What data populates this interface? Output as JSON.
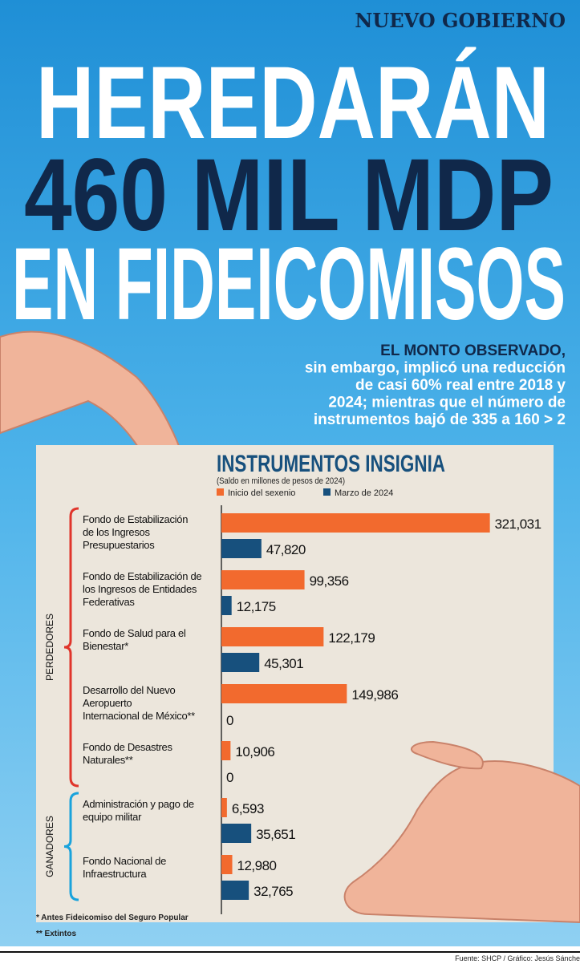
{
  "header": {
    "kicker": "NUEVO GOBIERNO",
    "title": [
      "HEREDARÁN",
      "460 MIL MDP",
      "EN FIDEICOMISOS"
    ],
    "subtitle": [
      "EL MONTO OBSERVADO,",
      "sin embargo, implicó una reducción",
      "de casi 60% real entre 2018 y",
      "2024; mientras que el número de",
      "instrumentos bajó de 335 a 160 > 2"
    ]
  },
  "chart_data": {
    "type": "bar",
    "orientation": "horizontal",
    "title": "INSTRUMENTOS INSIGNIA",
    "subtitle": "(Saldo en millones de pesos de 2024)",
    "groups": [
      {
        "name": "PERDEDORES",
        "color": "#e0352b",
        "categories": [
          [
            "Fondo de Estabilización",
            "de los Ingresos",
            "Presupuestarios"
          ],
          [
            "Fondo de Estabilización de",
            "los Ingresos de Entidades",
            "Federativas"
          ],
          [
            "Fondo de Salud  para el",
            "Bienestar*"
          ],
          [
            "Desarrollo del Nuevo",
            "Aeropuerto",
            "Internacional de México**"
          ],
          [
            "Fondo de Desastres",
            "Naturales**"
          ]
        ]
      },
      {
        "name": "GANADORES",
        "color": "#1aa3dc",
        "categories": [
          [
            "Administración y pago de",
            "equipo militar"
          ],
          [
            "Fondo Nacional de",
            "Infraestructura"
          ]
        ]
      }
    ],
    "series": [
      {
        "name": "Inicio del sexenio",
        "color": "#f26a2e",
        "values": [
          321031,
          99356,
          122179,
          149986,
          10906,
          6593,
          12980
        ],
        "value_labels": [
          "321,031",
          "99,356",
          "122,179",
          "149,986",
          "10,906",
          "6,593",
          "12,980"
        ]
      },
      {
        "name": "Marzo de 2024",
        "color": "#17507d",
        "values": [
          47820,
          12175,
          45301,
          0,
          0,
          35651,
          32765
        ],
        "value_labels": [
          "47,820",
          "12,175",
          "45,301",
          "0",
          "0",
          "35,651",
          "32,765"
        ]
      }
    ],
    "xlim": [
      0,
      330000
    ]
  },
  "footer": {
    "notes": [
      "* Antes Fideicomiso del Seguro Popular",
      "** Extintos"
    ],
    "source": "Fuente: SHCP / Gráfico: Jesús Sánche"
  }
}
